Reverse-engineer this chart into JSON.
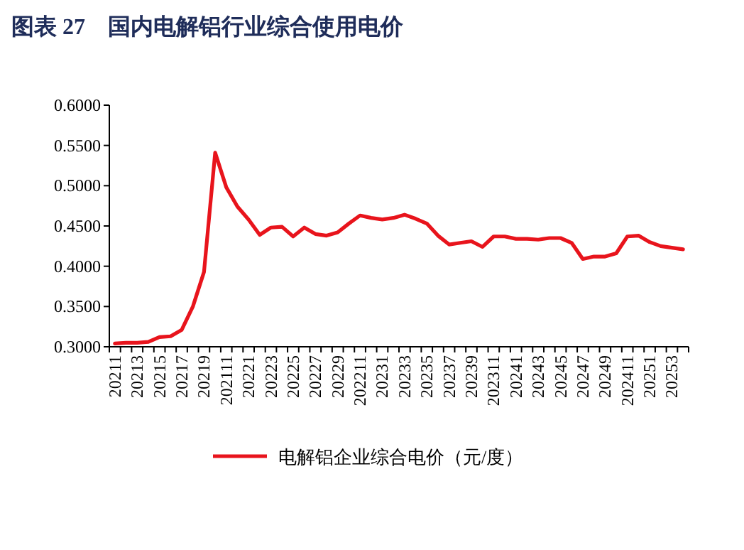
{
  "chart_data": {
    "type": "line",
    "title": "图表 27　国内电解铝行业综合使用电价",
    "categories": [
      "20211",
      null,
      "20213",
      null,
      "20215",
      null,
      "20217",
      null,
      "20219",
      null,
      "202111",
      null,
      "20221",
      null,
      "20223",
      null,
      "20225",
      null,
      "20227",
      null,
      "20229",
      null,
      "202211",
      null,
      "20231",
      null,
      "20233",
      null,
      "20235",
      null,
      "20237",
      null,
      "20239",
      null,
      "202311",
      null,
      "20241",
      null,
      "20243",
      null,
      "20245",
      null,
      "20247",
      null,
      "20249",
      null,
      "202411",
      null,
      "20251",
      null,
      "20253",
      null
    ],
    "series": [
      {
        "name": "电解铝企业综合电价（元/度）",
        "color": "#e8141c",
        "values": [
          0.304,
          0.305,
          0.305,
          0.306,
          0.312,
          0.313,
          0.321,
          0.35,
          0.393,
          0.541,
          0.498,
          0.474,
          0.458,
          0.439,
          0.448,
          0.449,
          0.437,
          0.448,
          0.44,
          0.438,
          0.442,
          0.453,
          0.463,
          0.46,
          0.458,
          0.46,
          0.464,
          0.459,
          0.453,
          0.438,
          0.427,
          0.429,
          0.431,
          0.424,
          0.437,
          0.437,
          0.434,
          0.434,
          0.433,
          0.435,
          0.435,
          0.429,
          0.409,
          0.412,
          0.412,
          0.416,
          0.437,
          0.438,
          0.43,
          0.425,
          0.423,
          0.421
        ]
      }
    ],
    "ylim": [
      0.3,
      0.6
    ],
    "yticks": [
      {
        "value": 0.3,
        "label": "0.3000"
      },
      {
        "value": 0.35,
        "label": "0.3500"
      },
      {
        "value": 0.4,
        "label": "0.4000"
      },
      {
        "value": 0.45,
        "label": "0.4500"
      },
      {
        "value": 0.5,
        "label": "0.5000"
      },
      {
        "value": 0.55,
        "label": "0.5500"
      },
      {
        "value": 0.6,
        "label": "0.6000"
      }
    ],
    "legend": "bottom"
  }
}
